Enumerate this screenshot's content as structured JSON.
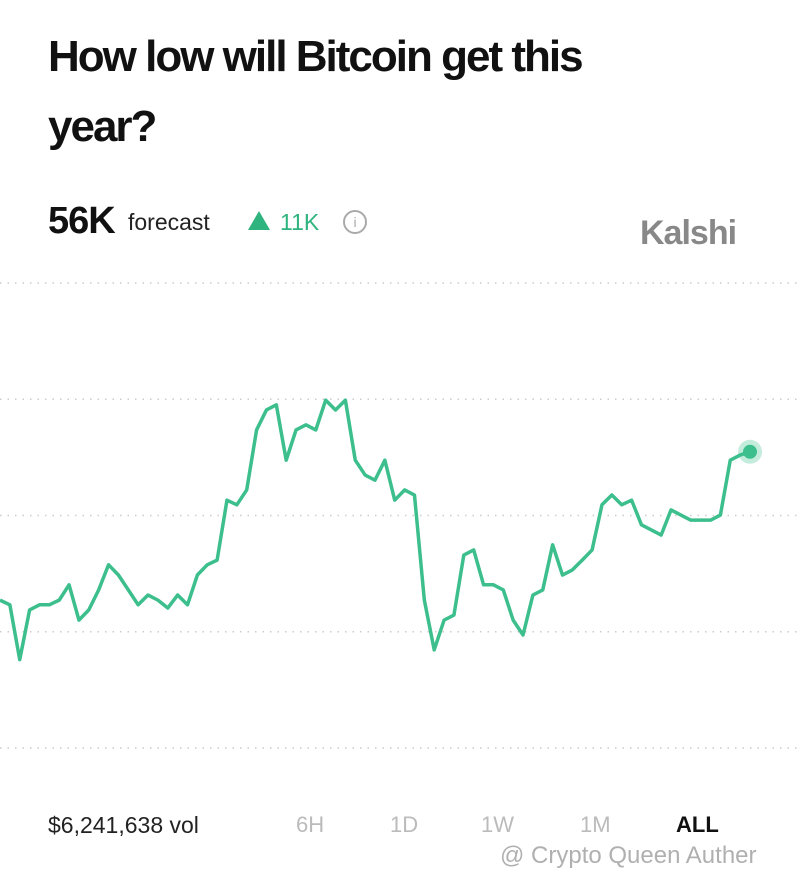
{
  "header": {
    "title": "How low will Bitcoin get this year?"
  },
  "forecast": {
    "value": "56K",
    "label": "forecast",
    "change": "11K"
  },
  "brand": "Kalshi",
  "chart_data": {
    "type": "line",
    "color": "#3cbf8d",
    "ylim": [
      0,
      100
    ],
    "grid": true,
    "values": [
      31.8,
      30.8,
      19.0,
      29.7,
      30.8,
      30.8,
      31.8,
      35.1,
      27.5,
      29.7,
      34.0,
      39.4,
      37.2,
      34.0,
      30.8,
      32.9,
      31.8,
      30.1,
      32.9,
      30.8,
      37.2,
      39.4,
      40.4,
      53.3,
      52.3,
      55.5,
      68.4,
      72.7,
      73.8,
      61.9,
      68.4,
      69.5,
      68.4,
      74.8,
      72.7,
      74.8,
      61.9,
      58.7,
      57.6,
      61.9,
      53.3,
      55.5,
      54.4,
      31.8,
      21.1,
      27.5,
      28.6,
      41.5,
      42.6,
      35.1,
      35.1,
      34.0,
      27.5,
      24.3,
      32.9,
      34.0,
      43.7,
      37.2,
      38.3,
      40.4,
      42.6,
      52.3,
      54.4,
      52.3,
      53.3,
      48.0,
      46.9,
      45.8,
      51.2,
      50.1,
      49.0,
      49.0,
      49.0,
      50.1,
      61.9,
      63.0,
      63.7
    ]
  },
  "footer": {
    "volume": "$6,241,638 vol",
    "ranges": [
      "6H",
      "1D",
      "1W",
      "1M",
      "ALL"
    ]
  },
  "watermark": "@ Crypto Queen Auther"
}
